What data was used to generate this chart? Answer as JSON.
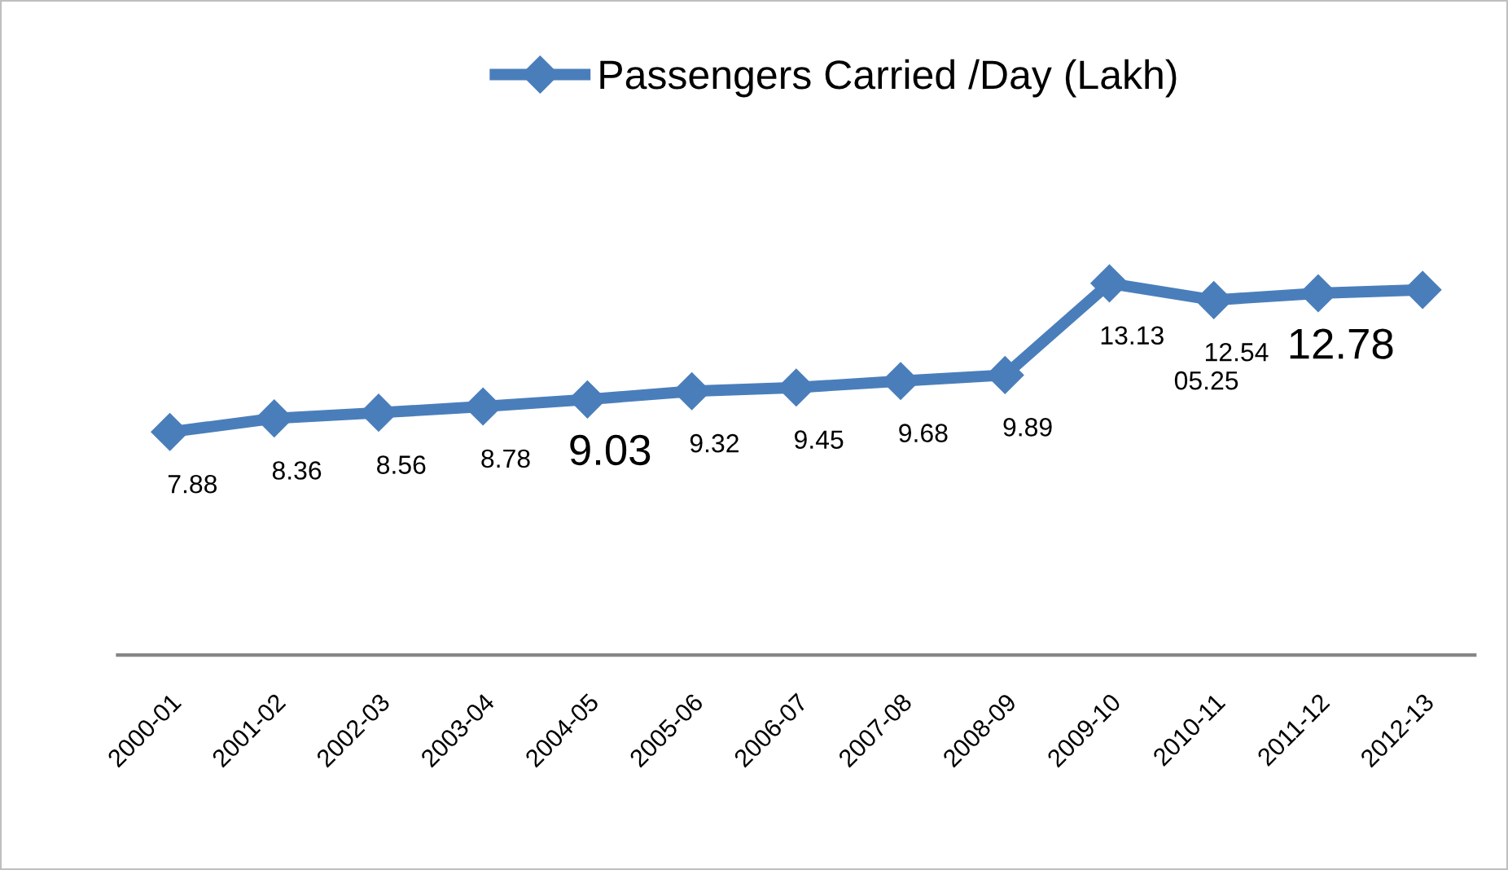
{
  "chart_data": {
    "type": "line",
    "categories": [
      "2000-01",
      "2001-02",
      "2002-03",
      "2003-04",
      "2004-05",
      "2005-06",
      "2006-07",
      "2007-08",
      "2008-09",
      "2009-10",
      "2010-11",
      "2011-12",
      "2012-13"
    ],
    "series": [
      {
        "name": "Passengers Carried /Day (Lakh)",
        "color": "#4a7ebb",
        "values": [
          7.88,
          8.36,
          8.56,
          8.78,
          9.03,
          9.32,
          9.45,
          9.68,
          9.89,
          13.13,
          12.54,
          12.78,
          12.9
        ],
        "value_labels": [
          "7.88",
          "8.36",
          "8.56",
          "8.78",
          "9.03",
          "9.32",
          "9.45",
          "9.68",
          "9.89",
          "13.13",
          "12.54",
          "12.78",
          null
        ]
      }
    ],
    "annotations": [
      "05.25"
    ],
    "legend": "top",
    "marker": "diamond",
    "line_style": "solid",
    "grid": false,
    "tick_labels": "x"
  }
}
